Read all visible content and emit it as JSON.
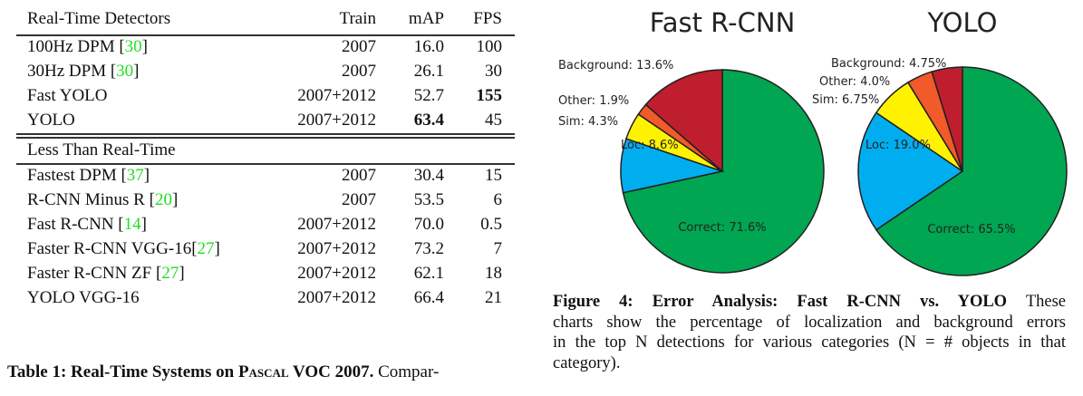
{
  "table": {
    "headers": {
      "name": "Real-Time Detectors",
      "train": "Train",
      "map": "mAP",
      "fps": "FPS"
    },
    "realtime_rows": [
      {
        "name": "100Hz DPM ",
        "ref": "30",
        "train": "2007",
        "map": "16.0",
        "fps": "100"
      },
      {
        "name": "30Hz DPM ",
        "ref": "30",
        "train": "2007",
        "map": "26.1",
        "fps": "30"
      },
      {
        "name": "Fast YOLO",
        "ref": "",
        "train": "2007+2012",
        "map": "52.7",
        "fps": "155"
      },
      {
        "name": "YOLO",
        "ref": "",
        "train": "2007+2012",
        "map": "63.4",
        "fps": "45"
      }
    ],
    "section2_title": "Less Than Real-Time",
    "slow_rows": [
      {
        "name": "Fastest DPM ",
        "ref": "37",
        "train": "2007",
        "map": "30.4",
        "fps": "15"
      },
      {
        "name": "R-CNN Minus R ",
        "ref": "20",
        "train": "2007",
        "map": "53.5",
        "fps": "6"
      },
      {
        "name": "Fast R-CNN ",
        "ref": "14",
        "train": "2007+2012",
        "map": "70.0",
        "fps": "0.5"
      },
      {
        "name": "Faster R-CNN VGG-16",
        "ref": "27",
        "train": "2007+2012",
        "map": "73.2",
        "fps": "7"
      },
      {
        "name": "Faster R-CNN ZF ",
        "ref": "27",
        "train": "2007+2012",
        "map": "62.1",
        "fps": "18"
      },
      {
        "name": "YOLO VGG-16",
        "ref": "",
        "train": "2007+2012",
        "map": "66.4",
        "fps": "21"
      }
    ],
    "caption": {
      "label": "Table 1:",
      "title_pre": "Real-Time Systems on ",
      "title_sc": "Pascal",
      "title_post": " VOC 2007.",
      "text": " Compar-"
    }
  },
  "chart_data": [
    {
      "type": "pie",
      "title": "Fast R-CNN",
      "slices": [
        {
          "name": "Correct",
          "value": 71.6,
          "label": "Correct: 71.6%",
          "color": "#00a651"
        },
        {
          "name": "Loc",
          "value": 8.6,
          "label": "Loc: 8.6%",
          "color": "#00aeef"
        },
        {
          "name": "Sim",
          "value": 4.3,
          "label": "Sim: 4.3%",
          "color": "#fff200"
        },
        {
          "name": "Other",
          "value": 1.9,
          "label": "Other: 1.9%",
          "color": "#f15a29"
        },
        {
          "name": "Background",
          "value": 13.6,
          "label": "Background: 13.6%",
          "color": "#be1e2d"
        }
      ]
    },
    {
      "type": "pie",
      "title": "YOLO",
      "slices": [
        {
          "name": "Correct",
          "value": 65.5,
          "label": "Correct: 65.5%",
          "color": "#00a651"
        },
        {
          "name": "Loc",
          "value": 19.0,
          "label": "Loc: 19.0%",
          "color": "#00aeef"
        },
        {
          "name": "Sim",
          "value": 6.75,
          "label": "Sim: 6.75%",
          "color": "#fff200"
        },
        {
          "name": "Other",
          "value": 4.0,
          "label": "Other: 4.0%",
          "color": "#f15a29"
        },
        {
          "name": "Background",
          "value": 4.75,
          "label": "Background: 4.75%",
          "color": "#be1e2d"
        }
      ]
    }
  ],
  "figure_caption": {
    "label": "Figure 4:",
    "title": "Error Analysis: Fast R-CNN vs.  YOLO",
    "line1_rest": " These",
    "line2": "charts show the percentage of localization and background errors",
    "line3": "in the top N detections for various categories (N = # objects in that",
    "line4": "category)."
  }
}
